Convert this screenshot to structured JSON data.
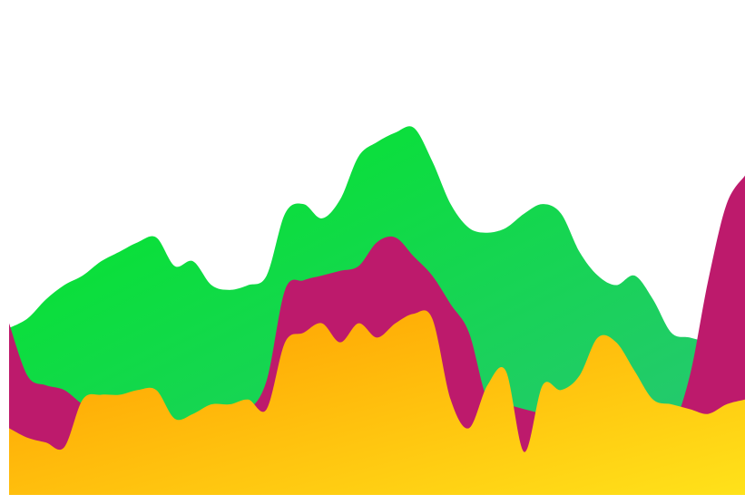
{
  "chart_data": {
    "type": "area",
    "stacked": false,
    "smooth": true,
    "axes_visible": false,
    "grid": false,
    "legend": "none",
    "xlim": [
      0,
      40
    ],
    "ylim": [
      0,
      100
    ],
    "series": [
      {
        "color_start": "#00e826",
        "color_end": "#2ac47a",
        "values": [
          35,
          37,
          41,
          44,
          46,
          49,
          51,
          53,
          54,
          48,
          49,
          44,
          43,
          44,
          46,
          59,
          61,
          58,
          62,
          71,
          74,
          76,
          77,
          70,
          61,
          56,
          55,
          56,
          59,
          61,
          59,
          51,
          46,
          44,
          46,
          41,
          34,
          33,
          32,
          31,
          30
        ]
      },
      {
        "color_start": "#bd1a6c",
        "color_end": "#bd1a6c",
        "values": [
          36,
          25,
          23,
          22,
          19,
          17,
          15,
          14,
          14,
          13,
          13,
          16,
          19,
          18,
          24,
          43,
          45,
          46,
          47,
          48,
          53,
          54,
          50,
          46,
          40,
          34,
          20,
          19,
          18,
          17,
          16,
          17,
          18,
          18,
          19,
          14,
          14,
          25,
          45,
          61,
          67
        ]
      },
      {
        "color_start": "#ff9b00",
        "color_end": "#ffe21a",
        "values": [
          14,
          12,
          11,
          10,
          20,
          21,
          21,
          22,
          22,
          16,
          17,
          19,
          19,
          20,
          18,
          32,
          34,
          36,
          32,
          36,
          33,
          36,
          38,
          37,
          20,
          14,
          23,
          26,
          9,
          23,
          22,
          25,
          33,
          32,
          26,
          20,
          19,
          18,
          17,
          19,
          20
        ]
      }
    ]
  }
}
